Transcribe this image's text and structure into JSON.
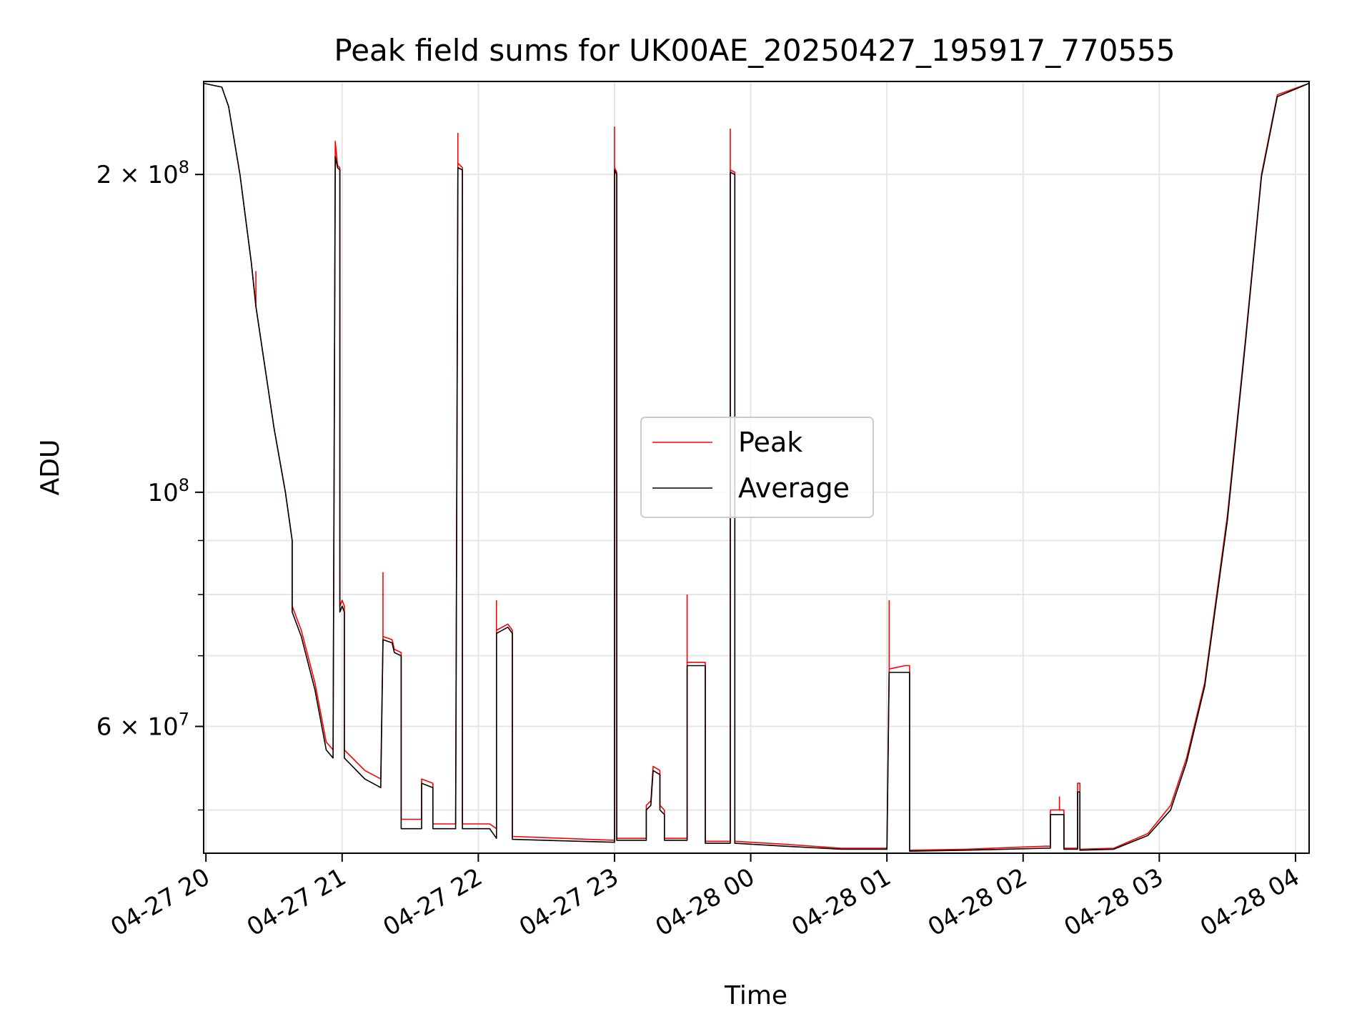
{
  "chart_data": {
    "type": "line",
    "title": "Peak field sums for UK00AE_20250427_195917_770555",
    "xlabel": "Time",
    "ylabel": "ADU",
    "yscale": "log",
    "ylim": [
      45500000,
      245000000
    ],
    "xlim": [
      "04-27 19:59",
      "04-28 04:06"
    ],
    "grid": true,
    "legend_position": "center",
    "colors": {
      "peak": "#ff0000",
      "average": "#000000"
    },
    "x_ticks": [
      "04-27 20",
      "04-27 21",
      "04-27 22",
      "04-27 23",
      "04-28 00",
      "04-28 01",
      "04-28 02",
      "04-28 03",
      "04-28 04"
    ],
    "y_ticks": [
      {
        "value": 200000000,
        "label": "2 × 10⁸",
        "mantissa": "2 × 10",
        "exp": "8"
      },
      {
        "value": 100000000,
        "label": "10⁸",
        "mantissa": "10",
        "exp": "8"
      },
      {
        "value": 60000000,
        "label": "6 × 10⁷",
        "mantissa": "6 × 10",
        "exp": "7"
      }
    ],
    "series": [
      {
        "name": "Peak",
        "color": "#ff0000",
        "points": [
          [
            "04-27 19:59",
            244000000
          ],
          [
            "04-27 20:07",
            242000000
          ],
          [
            "04-27 20:10",
            232000000
          ],
          [
            "04-27 20:15",
            200000000
          ],
          [
            "04-27 20:20",
            165000000
          ],
          [
            "04-27 20:22",
            150000000
          ],
          [
            "04-27 20:30",
            115000000
          ],
          [
            "04-27 20:35",
            100000000
          ],
          [
            "04-27 20:38",
            90000000
          ],
          [
            "04-27 20:38",
            78000000
          ],
          [
            "04-27 20:42",
            74000000
          ],
          [
            "04-27 20:48",
            66000000
          ],
          [
            "04-27 20:53",
            58000000
          ],
          [
            "04-27 20:56",
            57000000
          ],
          [
            "04-27 20:57",
            215000000
          ],
          [
            "04-27 20:58",
            204000000
          ],
          [
            "04-27 20:59",
            203000000
          ],
          [
            "04-27 20:59",
            78000000
          ],
          [
            "04-27 21:00",
            79000000
          ],
          [
            "04-27 21:01",
            78000000
          ],
          [
            "04-27 21:01",
            57000000
          ],
          [
            "04-27 21:10",
            54500000
          ],
          [
            "04-27 21:17",
            53500000
          ],
          [
            "04-27 21:18",
            73000000
          ],
          [
            "04-27 21:22",
            72500000
          ],
          [
            "04-27 21:23",
            71000000
          ],
          [
            "04-27 21:26",
            70500000
          ],
          [
            "04-27 21:26",
            49000000
          ],
          [
            "04-27 21:35",
            49000000
          ],
          [
            "04-27 21:35",
            53500000
          ],
          [
            "04-27 21:40",
            53000000
          ],
          [
            "04-27 21:40",
            48500000
          ],
          [
            "04-27 21:50",
            48500000
          ],
          [
            "04-27 21:51",
            205000000
          ],
          [
            "04-27 21:53",
            203000000
          ],
          [
            "04-27 21:53",
            48500000
          ],
          [
            "04-27 22:05",
            48500000
          ],
          [
            "04-27 22:08",
            48000000
          ],
          [
            "04-27 22:08",
            74000000
          ],
          [
            "04-27 22:13",
            75000000
          ],
          [
            "04-27 22:15",
            74000000
          ],
          [
            "04-27 22:15",
            47200000
          ],
          [
            "04-27 23:00",
            46800000
          ],
          [
            "04-27 23:00",
            203000000
          ],
          [
            "04-27 23:01",
            201000000
          ],
          [
            "04-27 23:01",
            47000000
          ],
          [
            "04-27 23:14",
            47000000
          ],
          [
            "04-27 23:14",
            50500000
          ],
          [
            "04-27 23:16",
            51000000
          ],
          [
            "04-27 23:17",
            55000000
          ],
          [
            "04-27 23:20",
            54500000
          ],
          [
            "04-27 23:20",
            50500000
          ],
          [
            "04-27 23:22",
            50000000
          ],
          [
            "04-27 23:22",
            47000000
          ],
          [
            "04-27 23:32",
            47000000
          ],
          [
            "04-27 23:32",
            69000000
          ],
          [
            "04-27 23:40",
            69000000
          ],
          [
            "04-27 23:40",
            46700000
          ],
          [
            "04-27 23:51",
            46700000
          ],
          [
            "04-27 23:51",
            202000000
          ],
          [
            "04-27 23:53",
            201000000
          ],
          [
            "04-27 23:53",
            46700000
          ],
          [
            "04-28 00:15",
            46400000
          ],
          [
            "04-28 00:40",
            46000000
          ],
          [
            "04-28 01:00",
            46000000
          ],
          [
            "04-28 01:01",
            68000000
          ],
          [
            "04-28 01:08",
            68500000
          ],
          [
            "04-28 01:10",
            68500000
          ],
          [
            "04-28 01:10",
            45800000
          ],
          [
            "04-28 01:35",
            45900000
          ],
          [
            "04-28 02:10",
            46200000
          ],
          [
            "04-28 02:12",
            46200000
          ],
          [
            "04-28 02:12",
            50000000
          ],
          [
            "04-28 02:18",
            50000000
          ],
          [
            "04-28 02:18",
            46000000
          ],
          [
            "04-28 02:24",
            46000000
          ],
          [
            "04-28 02:24",
            53000000
          ],
          [
            "04-28 02:25",
            53000000
          ],
          [
            "04-28 02:25",
            45900000
          ],
          [
            "04-28 02:40",
            46000000
          ],
          [
            "04-28 02:55",
            47500000
          ],
          [
            "04-28 03:05",
            50500000
          ],
          [
            "04-28 03:12",
            56000000
          ],
          [
            "04-28 03:20",
            66000000
          ],
          [
            "04-28 03:30",
            95000000
          ],
          [
            "04-28 03:38",
            140000000
          ],
          [
            "04-28 03:45",
            200000000
          ],
          [
            "04-28 03:52",
            238000000
          ],
          [
            "04-28 04:06",
            244000000
          ]
        ],
        "spikes": [
          [
            "04-27 20:22",
            162000000
          ],
          [
            "04-27 21:18",
            84000000
          ],
          [
            "04-27 21:51",
            219000000
          ],
          [
            "04-27 22:08",
            79000000
          ],
          [
            "04-27 23:00",
            222000000
          ],
          [
            "04-27 23:32",
            80000000
          ],
          [
            "04-27 23:51",
            221000000
          ],
          [
            "04-28 01:01",
            79000000
          ],
          [
            "04-28 02:24",
            53000000
          ],
          [
            "04-28 02:16",
            51500000
          ]
        ]
      },
      {
        "name": "Average",
        "color": "#000000",
        "points": [
          [
            "04-27 19:59",
            244000000
          ],
          [
            "04-27 20:07",
            242000000
          ],
          [
            "04-27 20:10",
            232000000
          ],
          [
            "04-27 20:15",
            200000000
          ],
          [
            "04-27 20:20",
            165000000
          ],
          [
            "04-27 20:22",
            150000000
          ],
          [
            "04-27 20:30",
            115000000
          ],
          [
            "04-27 20:35",
            100000000
          ],
          [
            "04-27 20:38",
            90000000
          ],
          [
            "04-27 20:38",
            77000000
          ],
          [
            "04-27 20:42",
            73000000
          ],
          [
            "04-27 20:48",
            65000000
          ],
          [
            "04-27 20:53",
            57000000
          ],
          [
            "04-27 20:56",
            56000000
          ],
          [
            "04-27 20:57",
            208000000
          ],
          [
            "04-27 20:58",
            203000000
          ],
          [
            "04-27 20:59",
            202000000
          ],
          [
            "04-27 20:59",
            77000000
          ],
          [
            "04-27 21:00",
            78000000
          ],
          [
            "04-27 21:01",
            77000000
          ],
          [
            "04-27 21:01",
            56000000
          ],
          [
            "04-27 21:10",
            53500000
          ],
          [
            "04-27 21:17",
            52500000
          ],
          [
            "04-27 21:18",
            72500000
          ],
          [
            "04-27 21:22",
            72000000
          ],
          [
            "04-27 21:23",
            70500000
          ],
          [
            "04-27 21:26",
            70000000
          ],
          [
            "04-27 21:26",
            48000000
          ],
          [
            "04-27 21:35",
            48000000
          ],
          [
            "04-27 21:35",
            53000000
          ],
          [
            "04-27 21:40",
            52500000
          ],
          [
            "04-27 21:40",
            48000000
          ],
          [
            "04-27 21:50",
            48000000
          ],
          [
            "04-27 21:51",
            203000000
          ],
          [
            "04-27 21:53",
            202000000
          ],
          [
            "04-27 21:53",
            48000000
          ],
          [
            "04-27 22:05",
            48000000
          ],
          [
            "04-27 22:08",
            47000000
          ],
          [
            "04-27 22:08",
            73500000
          ],
          [
            "04-27 22:13",
            74500000
          ],
          [
            "04-27 22:15",
            73500000
          ],
          [
            "04-27 22:15",
            46900000
          ],
          [
            "04-27 23:00",
            46600000
          ],
          [
            "04-27 23:00",
            202000000
          ],
          [
            "04-27 23:01",
            200000000
          ],
          [
            "04-27 23:01",
            46800000
          ],
          [
            "04-27 23:14",
            46800000
          ],
          [
            "04-27 23:14",
            50000000
          ],
          [
            "04-27 23:16",
            50500000
          ],
          [
            "04-27 23:17",
            54500000
          ],
          [
            "04-27 23:20",
            54000000
          ],
          [
            "04-27 23:20",
            50000000
          ],
          [
            "04-27 23:22",
            49500000
          ],
          [
            "04-27 23:22",
            46800000
          ],
          [
            "04-27 23:32",
            46800000
          ],
          [
            "04-27 23:32",
            68500000
          ],
          [
            "04-27 23:40",
            68500000
          ],
          [
            "04-27 23:40",
            46500000
          ],
          [
            "04-27 23:51",
            46500000
          ],
          [
            "04-27 23:51",
            201000000
          ],
          [
            "04-27 23:53",
            200000000
          ],
          [
            "04-27 23:53",
            46500000
          ],
          [
            "04-28 00:15",
            46200000
          ],
          [
            "04-28 00:40",
            45900000
          ],
          [
            "04-28 01:00",
            45900000
          ],
          [
            "04-28 01:01",
            67500000
          ],
          [
            "04-28 01:08",
            67500000
          ],
          [
            "04-28 01:10",
            67500000
          ],
          [
            "04-28 01:10",
            45700000
          ],
          [
            "04-28 01:35",
            45800000
          ],
          [
            "04-28 02:10",
            46000000
          ],
          [
            "04-28 02:12",
            46000000
          ],
          [
            "04-28 02:12",
            49500000
          ],
          [
            "04-28 02:18",
            49500000
          ],
          [
            "04-28 02:18",
            45900000
          ],
          [
            "04-28 02:24",
            45900000
          ],
          [
            "04-28 02:24",
            52000000
          ],
          [
            "04-28 02:25",
            52000000
          ],
          [
            "04-28 02:25",
            45800000
          ],
          [
            "04-28 02:40",
            45900000
          ],
          [
            "04-28 02:55",
            47300000
          ],
          [
            "04-28 03:05",
            50000000
          ],
          [
            "04-28 03:12",
            55500000
          ],
          [
            "04-28 03:20",
            65500000
          ],
          [
            "04-28 03:30",
            94000000
          ],
          [
            "04-28 03:38",
            139000000
          ],
          [
            "04-28 03:45",
            199000000
          ],
          [
            "04-28 03:52",
            237000000
          ],
          [
            "04-28 04:06",
            244000000
          ]
        ]
      }
    ]
  }
}
